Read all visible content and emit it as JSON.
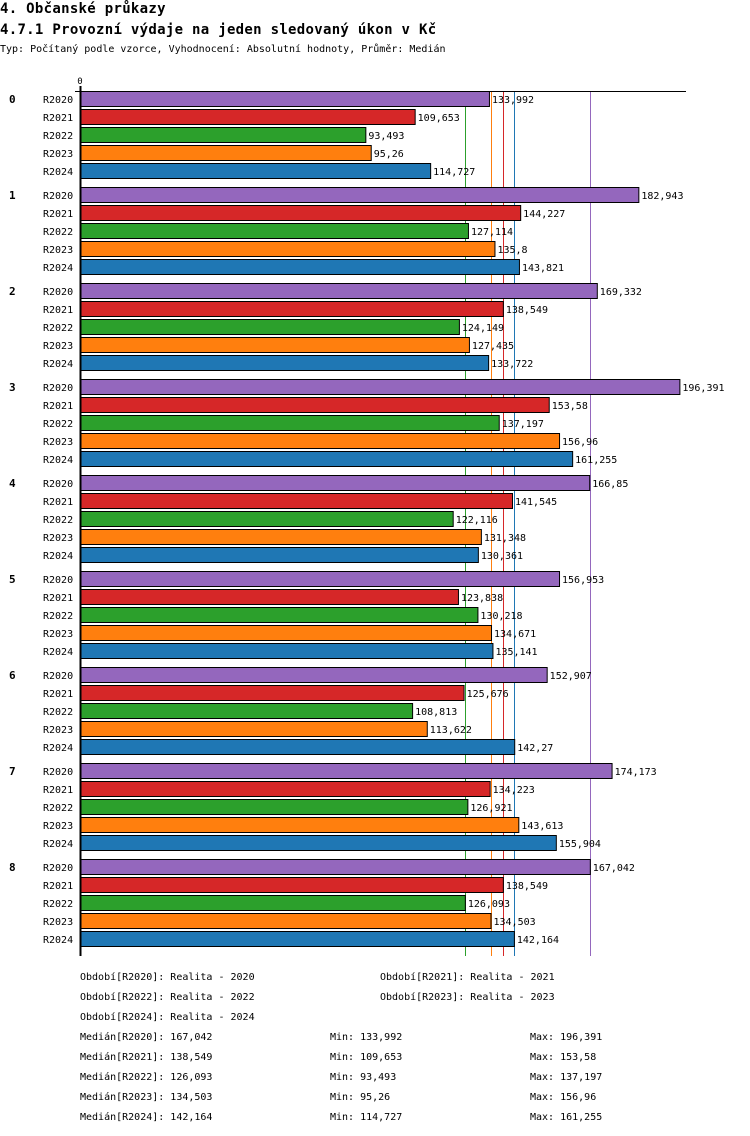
{
  "header": {
    "section_title": "4. Občanské průkazy",
    "chart_title": "4.7.1 Provozní výdaje na jeden sledovaný úkon v Kč",
    "subtitle": "Typ: Počítaný podle vzorce, Vyhodnocení: Absolutní hodnoty, Průměr: Medián"
  },
  "chart_data": {
    "type": "bar",
    "orientation": "horizontal",
    "title": "4.7.1 Provozní výdaje na jeden sledovaný úkon v Kč",
    "xlabel": "",
    "ylabel": "",
    "x_tick_labels": [
      "0"
    ],
    "xlim": [
      0,
      200
    ],
    "grid": false,
    "categories": [
      "0",
      "1",
      "2",
      "3",
      "4",
      "5",
      "6",
      "7",
      "8"
    ],
    "series": [
      {
        "name": "R2020",
        "color": "#9467bd",
        "values": [
          133.992,
          182.943,
          169.332,
          196.391,
          166.85,
          156.953,
          152.907,
          174.173,
          167.042
        ],
        "labels": [
          "133,992",
          "182,943",
          "169,332",
          "196,391",
          "166,85",
          "156,953",
          "152,907",
          "174,173",
          "167,042"
        ]
      },
      {
        "name": "R2021",
        "color": "#d62728",
        "values": [
          109.653,
          144.227,
          138.549,
          153.58,
          141.545,
          123.838,
          125.676,
          134.223,
          138.549
        ],
        "labels": [
          "109,653",
          "144,227",
          "138,549",
          "153,58",
          "141,545",
          "123,838",
          "125,676",
          "134,223",
          "138,549"
        ]
      },
      {
        "name": "R2022",
        "color": "#2ca02c",
        "values": [
          93.493,
          127.114,
          124.149,
          137.197,
          122.116,
          130.218,
          108.813,
          126.921,
          126.093
        ],
        "labels": [
          "93,493",
          "127,114",
          "124,149",
          "137,197",
          "122,116",
          "130,218",
          "108,813",
          "126,921",
          "126,093"
        ]
      },
      {
        "name": "R2023",
        "color": "#ff7f0e",
        "values": [
          95.26,
          135.8,
          127.435,
          156.96,
          131.348,
          134.671,
          113.622,
          143.613,
          134.503
        ],
        "labels": [
          "95,26",
          "135,8",
          "127,435",
          "156,96",
          "131,348",
          "134,671",
          "113,622",
          "143,613",
          "134,503"
        ]
      },
      {
        "name": "R2024",
        "color": "#1f77b4",
        "values": [
          114.727,
          143.821,
          133.722,
          161.255,
          130.361,
          135.141,
          142.27,
          155.904,
          142.164
        ],
        "labels": [
          "114,727",
          "143,821",
          "133,722",
          "161,255",
          "130,361",
          "135,141",
          "142,27",
          "155,904",
          "142,164"
        ]
      }
    ],
    "median_lines": [
      {
        "series": "R2020",
        "value": 167.042
      },
      {
        "series": "R2021",
        "value": 138.549
      },
      {
        "series": "R2022",
        "value": 126.093
      },
      {
        "series": "R2023",
        "value": 134.503
      },
      {
        "series": "R2024",
        "value": 142.164
      }
    ],
    "legend": [
      "Období[R2020]: Realita - 2020",
      "Období[R2021]: Realita - 2021",
      "Období[R2022]: Realita - 2022",
      "Období[R2023]: Realita - 2023",
      "Období[R2024]: Realita - 2024"
    ],
    "stats": [
      {
        "median": "Medián[R2020]: 167,042",
        "min": "Min: 133,992",
        "max": "Max: 196,391"
      },
      {
        "median": "Medián[R2021]: 138,549",
        "min": "Min: 109,653",
        "max": "Max: 153,58"
      },
      {
        "median": "Medián[R2022]: 126,093",
        "min": "Min: 93,493",
        "max": "Max: 137,197"
      },
      {
        "median": "Medián[R2023]: 134,503",
        "min": "Min: 95,26",
        "max": "Max: 156,96"
      },
      {
        "median": "Medián[R2024]: 142,164",
        "min": "Min: 114,727",
        "max": "Max: 161,255"
      }
    ]
  }
}
